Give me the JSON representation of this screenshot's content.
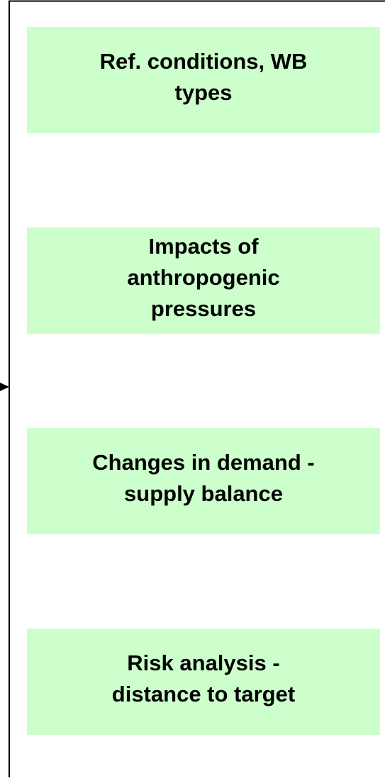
{
  "nodes": [
    {
      "lines": [
        "Ref. conditions, WB",
        "types"
      ]
    },
    {
      "lines": [
        "Impacts of",
        "anthropogenic",
        "pressures"
      ]
    },
    {
      "lines": [
        "Changes in demand -",
        "supply balance"
      ]
    },
    {
      "lines": [
        "Risk analysis -",
        "distance to target"
      ]
    }
  ]
}
